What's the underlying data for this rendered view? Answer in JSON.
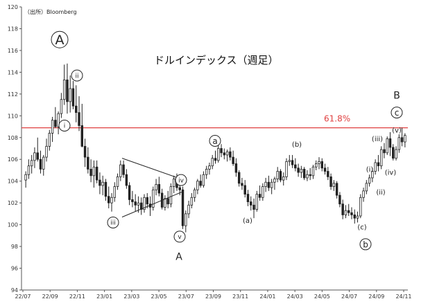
{
  "source_note": "（出所）Bloomberg",
  "chart_data": {
    "type": "candlestick",
    "title": "ドルインデックス（週足）",
    "xlabel": "",
    "ylabel": "",
    "ylim": [
      94,
      120
    ],
    "y_ticks": [
      94,
      96,
      98,
      100,
      102,
      104,
      106,
      108,
      110,
      112,
      114,
      116,
      118,
      120
    ],
    "x_tick_labels": [
      "22/07",
      "22/09",
      "22/11",
      "23/01",
      "23/03",
      "23/05",
      "23/07",
      "23/09",
      "23/11",
      "24/01",
      "24/03",
      "24/05",
      "24/07",
      "24/09",
      "24/11"
    ],
    "x_range_weeks": [
      0,
      148
    ],
    "grid": false,
    "reference_line": {
      "value": 108.9,
      "label": "61.8%",
      "color": "#e04040"
    },
    "up_color": "#ffffff",
    "down_color": "#222222",
    "ohlc": [
      [
        104.1,
        104.9,
        103.4,
        104.6
      ],
      [
        104.6,
        106.0,
        104.2,
        105.4
      ],
      [
        105.4,
        106.4,
        104.7,
        105.9
      ],
      [
        105.9,
        107.1,
        105.2,
        106.6
      ],
      [
        106.6,
        108.0,
        105.8,
        106.0
      ],
      [
        106.0,
        106.8,
        104.7,
        105.1
      ],
      [
        105.1,
        106.4,
        104.5,
        106.2
      ],
      [
        106.2,
        107.9,
        105.8,
        107.2
      ],
      [
        107.2,
        108.7,
        106.8,
        108.4
      ],
      [
        108.4,
        109.9,
        107.6,
        109.6
      ],
      [
        109.6,
        110.8,
        108.9,
        109.0
      ],
      [
        109.0,
        110.4,
        108.3,
        110.2
      ],
      [
        110.2,
        112.1,
        109.8,
        111.5
      ],
      [
        111.5,
        114.7,
        111.0,
        113.3
      ],
      [
        113.3,
        114.8,
        110.2,
        111.3
      ],
      [
        111.3,
        113.7,
        110.3,
        112.5
      ],
      [
        112.5,
        113.2,
        110.6,
        110.9
      ],
      [
        110.9,
        112.8,
        109.4,
        110.3
      ],
      [
        110.3,
        111.8,
        108.6,
        109.1
      ],
      [
        109.1,
        111.1,
        107.1,
        107.2
      ],
      [
        107.2,
        107.9,
        105.3,
        106.2
      ],
      [
        106.2,
        107.1,
        104.7,
        105.1
      ],
      [
        105.1,
        106.0,
        103.9,
        104.5
      ],
      [
        104.5,
        105.9,
        103.4,
        105.3
      ],
      [
        105.3,
        105.9,
        103.8,
        104.1
      ],
      [
        104.1,
        104.8,
        102.8,
        103.6
      ],
      [
        103.6,
        104.5,
        102.7,
        103.9
      ],
      [
        103.9,
        104.2,
        102.2,
        102.6
      ],
      [
        102.6,
        103.5,
        101.5,
        102.0
      ],
      [
        102.0,
        102.9,
        101.2,
        102.5
      ],
      [
        102.5,
        103.9,
        102.1,
        103.5
      ],
      [
        103.5,
        104.7,
        103.2,
        104.4
      ],
      [
        104.4,
        105.9,
        104.0,
        105.5
      ],
      [
        105.5,
        105.9,
        104.3,
        104.6
      ],
      [
        104.6,
        105.1,
        103.3,
        103.6
      ],
      [
        103.6,
        103.9,
        101.8,
        102.3
      ],
      [
        102.3,
        103.1,
        101.6,
        102.1
      ],
      [
        102.1,
        102.8,
        101.2,
        101.8
      ],
      [
        101.8,
        102.6,
        101.1,
        102.0
      ],
      [
        102.0,
        102.5,
        100.9,
        101.4
      ],
      [
        101.4,
        102.8,
        101.1,
        102.5
      ],
      [
        102.5,
        102.9,
        101.5,
        101.9
      ],
      [
        101.9,
        102.6,
        100.8,
        101.6
      ],
      [
        101.6,
        103.5,
        101.3,
        103.2
      ],
      [
        103.2,
        104.2,
        102.7,
        103.7
      ],
      [
        103.7,
        104.4,
        102.6,
        102.9
      ],
      [
        102.9,
        103.3,
        101.4,
        101.6
      ],
      [
        101.6,
        102.7,
        101.3,
        102.4
      ],
      [
        102.4,
        103.1,
        101.5,
        101.9
      ],
      [
        101.9,
        103.8,
        101.6,
        103.5
      ],
      [
        103.5,
        104.5,
        102.9,
        104.2
      ],
      [
        104.2,
        104.7,
        103.1,
        103.4
      ],
      [
        103.4,
        104.0,
        102.7,
        103.2
      ],
      [
        103.2,
        103.5,
        99.6,
        99.9
      ],
      [
        99.9,
        101.3,
        99.3,
        101.0
      ],
      [
        101.0,
        102.2,
        100.6,
        101.8
      ],
      [
        101.8,
        102.9,
        101.5,
        102.5
      ],
      [
        102.5,
        103.4,
        102.1,
        103.2
      ],
      [
        103.2,
        104.2,
        102.8,
        104.0
      ],
      [
        104.0,
        104.6,
        103.4,
        103.6
      ],
      [
        103.6,
        104.9,
        103.4,
        104.6
      ],
      [
        104.6,
        105.4,
        104.2,
        105.1
      ],
      [
        105.1,
        105.7,
        104.6,
        105.4
      ],
      [
        105.4,
        106.4,
        105.1,
        106.1
      ],
      [
        106.1,
        106.8,
        105.6,
        105.9
      ],
      [
        105.9,
        107.3,
        105.7,
        107.0
      ],
      [
        107.0,
        107.4,
        106.2,
        106.6
      ],
      [
        106.6,
        107.0,
        106.0,
        106.4
      ],
      [
        106.4,
        106.9,
        105.8,
        106.7
      ],
      [
        106.7,
        107.1,
        105.9,
        106.2
      ],
      [
        106.2,
        106.8,
        105.4,
        105.6
      ],
      [
        105.6,
        106.1,
        104.4,
        104.8
      ],
      [
        104.8,
        105.0,
        103.5,
        103.8
      ],
      [
        103.8,
        104.3,
        103.2,
        103.6
      ],
      [
        103.6,
        104.1,
        102.5,
        102.8
      ],
      [
        102.8,
        103.2,
        101.7,
        102.1
      ],
      [
        102.1,
        102.6,
        101.3,
        101.8
      ],
      [
        101.8,
        102.4,
        100.6,
        101.4
      ],
      [
        101.4,
        103.1,
        101.2,
        102.8
      ],
      [
        102.8,
        103.6,
        102.2,
        102.5
      ],
      [
        102.5,
        103.8,
        102.2,
        103.5
      ],
      [
        103.5,
        104.3,
        103.0,
        103.9
      ],
      [
        103.9,
        104.5,
        103.1,
        103.4
      ],
      [
        103.4,
        104.2,
        102.8,
        103.9
      ],
      [
        103.9,
        104.4,
        103.2,
        104.2
      ],
      [
        104.2,
        105.3,
        103.9,
        104.9
      ],
      [
        104.9,
        105.1,
        103.9,
        104.1
      ],
      [
        104.1,
        104.8,
        103.6,
        104.4
      ],
      [
        104.4,
        106.1,
        104.1,
        105.8
      ],
      [
        105.8,
        106.4,
        105.4,
        105.9
      ],
      [
        105.9,
        106.4,
        105.2,
        105.5
      ],
      [
        105.5,
        106.1,
        104.9,
        105.2
      ],
      [
        105.2,
        105.6,
        104.4,
        104.8
      ],
      [
        104.8,
        105.4,
        104.3,
        105.1
      ],
      [
        105.1,
        105.3,
        104.1,
        104.3
      ],
      [
        104.3,
        105.0,
        104.0,
        104.6
      ],
      [
        104.6,
        105.2,
        104.1,
        104.5
      ],
      [
        104.5,
        105.5,
        104.2,
        105.3
      ],
      [
        105.3,
        105.9,
        105.0,
        105.6
      ],
      [
        105.6,
        106.2,
        105.1,
        105.8
      ],
      [
        105.8,
        106.1,
        104.9,
        105.2
      ],
      [
        105.2,
        105.6,
        104.6,
        104.9
      ],
      [
        104.9,
        105.3,
        104.1,
        104.4
      ],
      [
        104.4,
        104.7,
        103.2,
        103.5
      ],
      [
        103.5,
        104.1,
        103.1,
        103.8
      ],
      [
        103.8,
        104.0,
        102.4,
        102.7
      ],
      [
        102.7,
        103.0,
        101.6,
        101.9
      ],
      [
        101.9,
        102.3,
        100.5,
        100.9
      ],
      [
        100.9,
        101.8,
        100.6,
        101.3
      ],
      [
        101.3,
        101.9,
        100.8,
        101.1
      ],
      [
        101.1,
        101.6,
        100.5,
        100.9
      ],
      [
        100.9,
        101.4,
        100.1,
        100.6
      ],
      [
        100.6,
        101.2,
        100.2,
        100.8
      ],
      [
        100.8,
        102.8,
        100.6,
        102.5
      ],
      [
        102.5,
        103.4,
        102.1,
        103.1
      ],
      [
        103.1,
        104.1,
        102.8,
        103.8
      ],
      [
        103.8,
        104.6,
        103.5,
        104.3
      ],
      [
        104.3,
        105.2,
        103.9,
        104.9
      ],
      [
        104.9,
        106.0,
        104.6,
        105.7
      ],
      [
        105.7,
        106.4,
        104.9,
        105.4
      ],
      [
        105.4,
        107.2,
        105.1,
        106.9
      ],
      [
        106.9,
        107.5,
        106.1,
        106.6
      ],
      [
        106.6,
        108.1,
        106.4,
        107.9
      ],
      [
        107.9,
        108.5,
        106.3,
        107.1
      ],
      [
        107.1,
        107.4,
        105.9,
        106.1
      ],
      [
        106.1,
        107.2,
        105.9,
        106.9
      ],
      [
        106.9,
        108.3,
        106.6,
        108.0
      ],
      [
        108.0,
        108.9,
        107.2,
        107.6
      ],
      [
        107.6,
        108.4,
        107.1,
        108.2
      ]
    ],
    "lines": [
      {
        "from": [
          84,
          106.2
        ],
        "to": [
          120,
          104.3
        ]
      },
      {
        "from": [
          77,
          101.1
        ],
        "to": [
          120,
          102.9
        ]
      }
    ],
    "annotations": [
      {
        "text": "A",
        "at": [
          86,
          117.0
        ],
        "size": 19,
        "shape": "circle",
        "r": 12
      },
      {
        "text": "ii",
        "at": [
          111,
          113.7
        ],
        "size": 9,
        "shape": "circle",
        "r": 8
      },
      {
        "text": "i",
        "at": [
          93,
          109.1
        ],
        "size": 9,
        "shape": "circle",
        "r": 8
      },
      {
        "text": "iii",
        "at": [
          163,
          100.2
        ],
        "size": 9,
        "shape": "circle",
        "r": 8
      },
      {
        "text": "iv",
        "at": [
          261,
          104.1
        ],
        "size": 9,
        "shape": "circle",
        "r": 8
      },
      {
        "text": "v",
        "at": [
          259,
          98.9
        ],
        "size": 9,
        "shape": "circle",
        "r": 8
      },
      {
        "text": "A",
        "at": [
          258,
          97.1
        ],
        "size": 14,
        "shape": "none"
      },
      {
        "text": "a",
        "at": [
          310,
          107.7
        ],
        "size": 12,
        "shape": "circle",
        "r": 8
      },
      {
        "text": "(a)",
        "at": [
          357,
          100.4
        ],
        "size": 10,
        "shape": "none"
      },
      {
        "text": "(b)",
        "at": [
          428,
          107.4
        ],
        "size": 10,
        "shape": "none"
      },
      {
        "text": "(c)",
        "at": [
          522,
          99.8
        ],
        "size": 10,
        "shape": "none"
      },
      {
        "text": "b",
        "at": [
          527,
          98.2
        ],
        "size": 12,
        "shape": "circle",
        "r": 8
      },
      {
        "text": "B",
        "at": [
          572,
          111.9
        ],
        "size": 14,
        "shape": "none"
      },
      {
        "text": "c",
        "at": [
          572,
          110.3
        ],
        "size": 12,
        "shape": "circle",
        "r": 8
      },
      {
        "text": "(v)",
        "at": [
          572,
          108.7
        ],
        "size": 10,
        "shape": "none"
      },
      {
        "text": "(iii)",
        "at": [
          544,
          107.9
        ],
        "size": 10,
        "shape": "none"
      },
      {
        "text": "(i)",
        "at": [
          533,
          105.1
        ],
        "size": 10,
        "shape": "none"
      },
      {
        "text": "(iv)",
        "at": [
          563,
          104.8
        ],
        "size": 10,
        "shape": "none"
      },
      {
        "text": "(ii)",
        "at": [
          549,
          103.0
        ],
        "size": 10,
        "shape": "none"
      }
    ]
  }
}
